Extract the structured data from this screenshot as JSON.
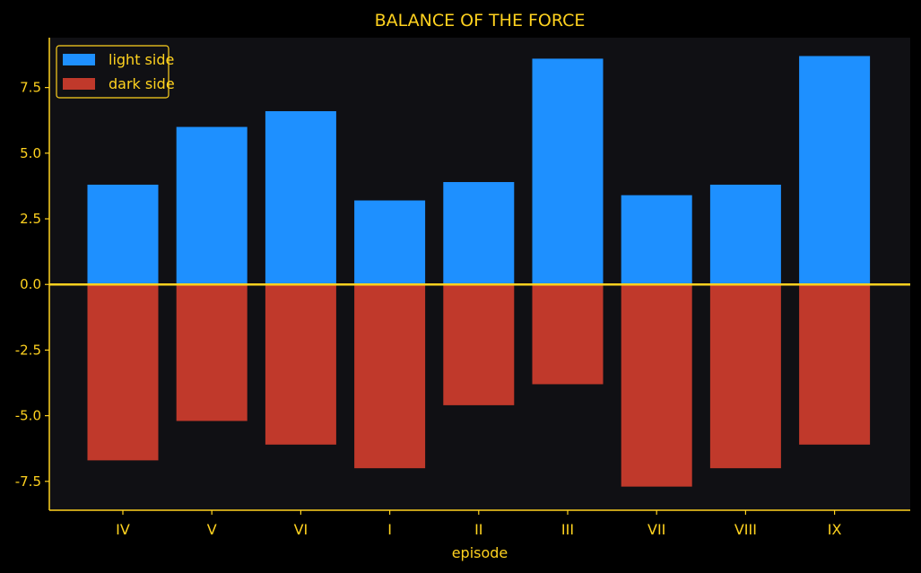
{
  "chart_data": {
    "type": "bar",
    "title": "BALANCE OF THE FORCE",
    "xlabel": "episode",
    "ylabel": "",
    "categories": [
      "IV",
      "V",
      "VI",
      "I",
      "II",
      "III",
      "VII",
      "VIII",
      "IX"
    ],
    "series": [
      {
        "name": "light side",
        "color": "#1e90ff",
        "values": [
          3.8,
          6.0,
          6.6,
          3.2,
          3.9,
          8.6,
          3.4,
          3.8,
          8.7
        ]
      },
      {
        "name": "dark side",
        "color": "#c0392b",
        "values": [
          -6.7,
          -5.2,
          -6.1,
          -7.0,
          -4.6,
          -3.8,
          -7.7,
          -7.0,
          -6.1
        ]
      }
    ],
    "ylim": [
      -8.6,
      9.4
    ],
    "yticks": [
      7.5,
      5.0,
      2.5,
      0.0,
      -2.5,
      -5.0,
      -7.5
    ],
    "ytick_labels": [
      "7.5",
      "5.0",
      "2.5",
      "0.0",
      "-2.5",
      "-5.0",
      "-7.5"
    ],
    "grid": false,
    "legend_position": "top-left",
    "colors": {
      "background": "#000000",
      "plot_background": "#101014",
      "text": "#ffd21f",
      "zero_line": "#ffd21f"
    }
  }
}
